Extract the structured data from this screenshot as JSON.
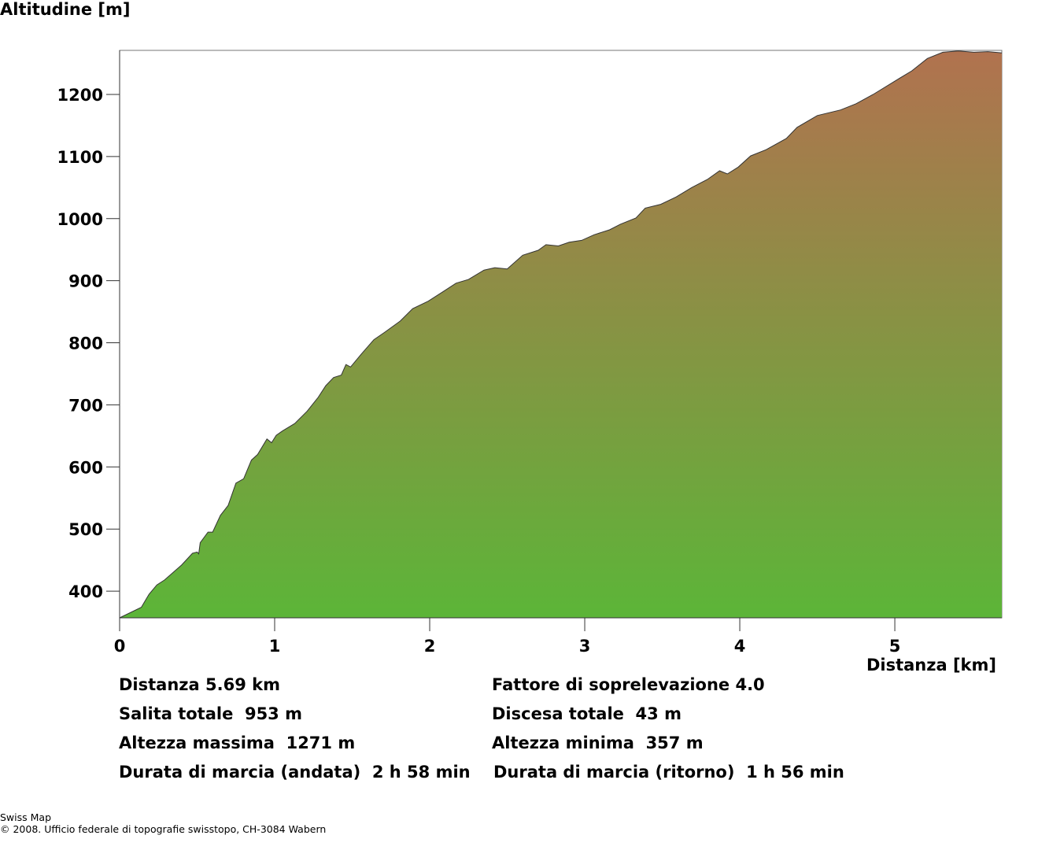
{
  "chart_data": {
    "type": "area",
    "title": "",
    "ylabel": "Altitudine [m]",
    "xlabel": "Distanza [km]",
    "xlim": [
      0,
      5.69
    ],
    "ylim": [
      357,
      1271
    ],
    "xticks": [
      0,
      1,
      2,
      3,
      4,
      5
    ],
    "yticks": [
      400,
      500,
      600,
      700,
      800,
      900,
      1000,
      1100,
      1200
    ],
    "grid": false,
    "colors": {
      "low": "#5cb538",
      "high": "#b1724f",
      "line": "#333333"
    },
    "x": [
      0,
      0.14,
      0.19,
      0.24,
      0.29,
      0.4,
      0.47,
      0.5,
      0.51,
      0.52,
      0.57,
      0.6,
      0.65,
      0.7,
      0.75,
      0.8,
      0.85,
      0.89,
      0.95,
      0.98,
      1.01,
      1.05,
      1.13,
      1.21,
      1.28,
      1.33,
      1.38,
      1.43,
      1.46,
      1.49,
      1.56,
      1.64,
      1.71,
      1.81,
      1.89,
      1.99,
      2.09,
      2.17,
      2.25,
      2.35,
      2.42,
      2.5,
      2.6,
      2.7,
      2.75,
      2.83,
      2.9,
      2.98,
      3.06,
      3.16,
      3.23,
      3.33,
      3.39,
      3.49,
      3.59,
      3.69,
      3.79,
      3.87,
      3.92,
      3.99,
      4.07,
      4.17,
      4.3,
      4.37,
      4.5,
      4.65,
      4.75,
      4.86,
      5.01,
      5.11,
      5.21,
      5.31,
      5.41,
      5.51,
      5.6,
      5.69
    ],
    "y": [
      357,
      374,
      395,
      410,
      418,
      442,
      461,
      463,
      460,
      478,
      495,
      495,
      522,
      538,
      574,
      581,
      611,
      620,
      645,
      639,
      651,
      658,
      670,
      690,
      712,
      731,
      744,
      748,
      765,
      761,
      782,
      805,
      817,
      835,
      855,
      867,
      883,
      896,
      902,
      917,
      921,
      919,
      941,
      949,
      958,
      956,
      962,
      965,
      974,
      982,
      991,
      1001,
      1017,
      1023,
      1035,
      1050,
      1063,
      1077,
      1072,
      1083,
      1101,
      1111,
      1129,
      1147,
      1166,
      1175,
      1185,
      1200,
      1223,
      1238,
      1258,
      1268,
      1270,
      1268,
      1269,
      1267
    ]
  },
  "stats": {
    "distance": "Distanza 5.69 km",
    "ascent": "Salita totale  953 m",
    "max_alt": "Altezza massima  1271 m",
    "duration_out": "Durata di marcia (andata)  2 h 58 min",
    "exaggeration": "Fattore di soprelevazione 4.0",
    "descent": "Discesa totale  43 m",
    "min_alt": "Altezza minima  357 m",
    "duration_back": "Durata di marcia (ritorno)  1 h 56 min"
  },
  "footer": {
    "line1": "Swiss Map",
    "line2": "© 2008. Ufficio federale di topografie swisstopo, CH-3084 Wabern"
  }
}
